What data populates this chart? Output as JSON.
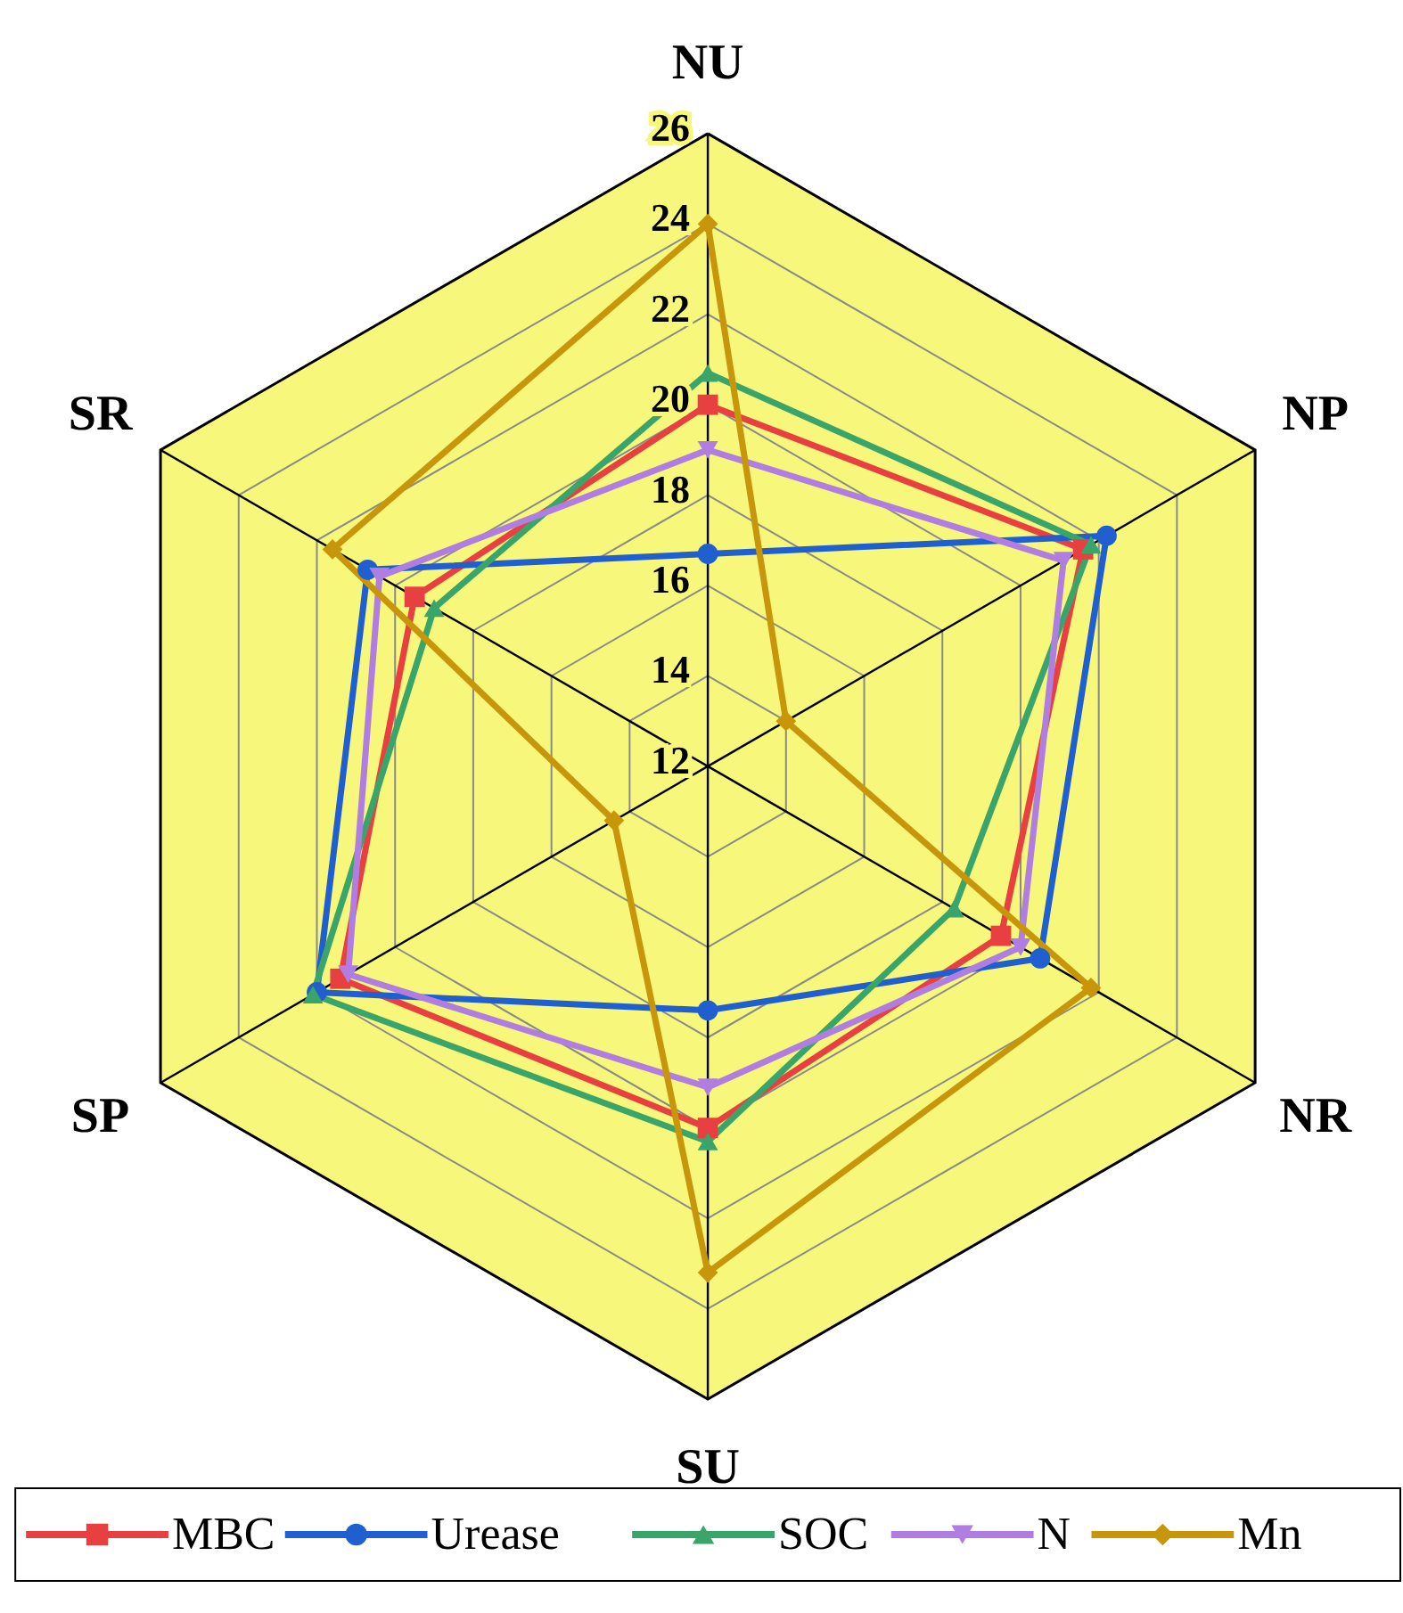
{
  "chart_data": {
    "type": "radar",
    "categories": [
      "NU",
      "NP",
      "NR",
      "SU",
      "SP",
      "SR"
    ],
    "series": [
      {
        "name": "MBC",
        "color": "#e84040",
        "marker": "square",
        "values": [
          20.0,
          21.6,
          19.5,
          20.0,
          21.4,
          19.5
        ]
      },
      {
        "name": "Urease",
        "color": "#1f5fcf",
        "marker": "circle",
        "values": [
          16.7,
          22.2,
          20.5,
          17.4,
          22.0,
          20.7
        ]
      },
      {
        "name": "SOC",
        "color": "#3aa56a",
        "marker": "triangle",
        "values": [
          20.7,
          21.8,
          18.3,
          20.3,
          22.1,
          19.0
        ]
      },
      {
        "name": "N",
        "color": "#b07de0",
        "marker": "triangle-down",
        "values": [
          19.0,
          21.1,
          20.0,
          19.1,
          21.2,
          20.4
        ]
      },
      {
        "name": "Mn",
        "color": "#c8960a",
        "marker": "diamond",
        "values": [
          24.0,
          14.0,
          21.8,
          23.2,
          14.4,
          21.6
        ]
      }
    ],
    "ylim": [
      12,
      26
    ],
    "yticks": [
      12,
      14,
      16,
      18,
      20,
      22,
      24,
      26
    ],
    "grid": true,
    "legend": "bottom"
  }
}
